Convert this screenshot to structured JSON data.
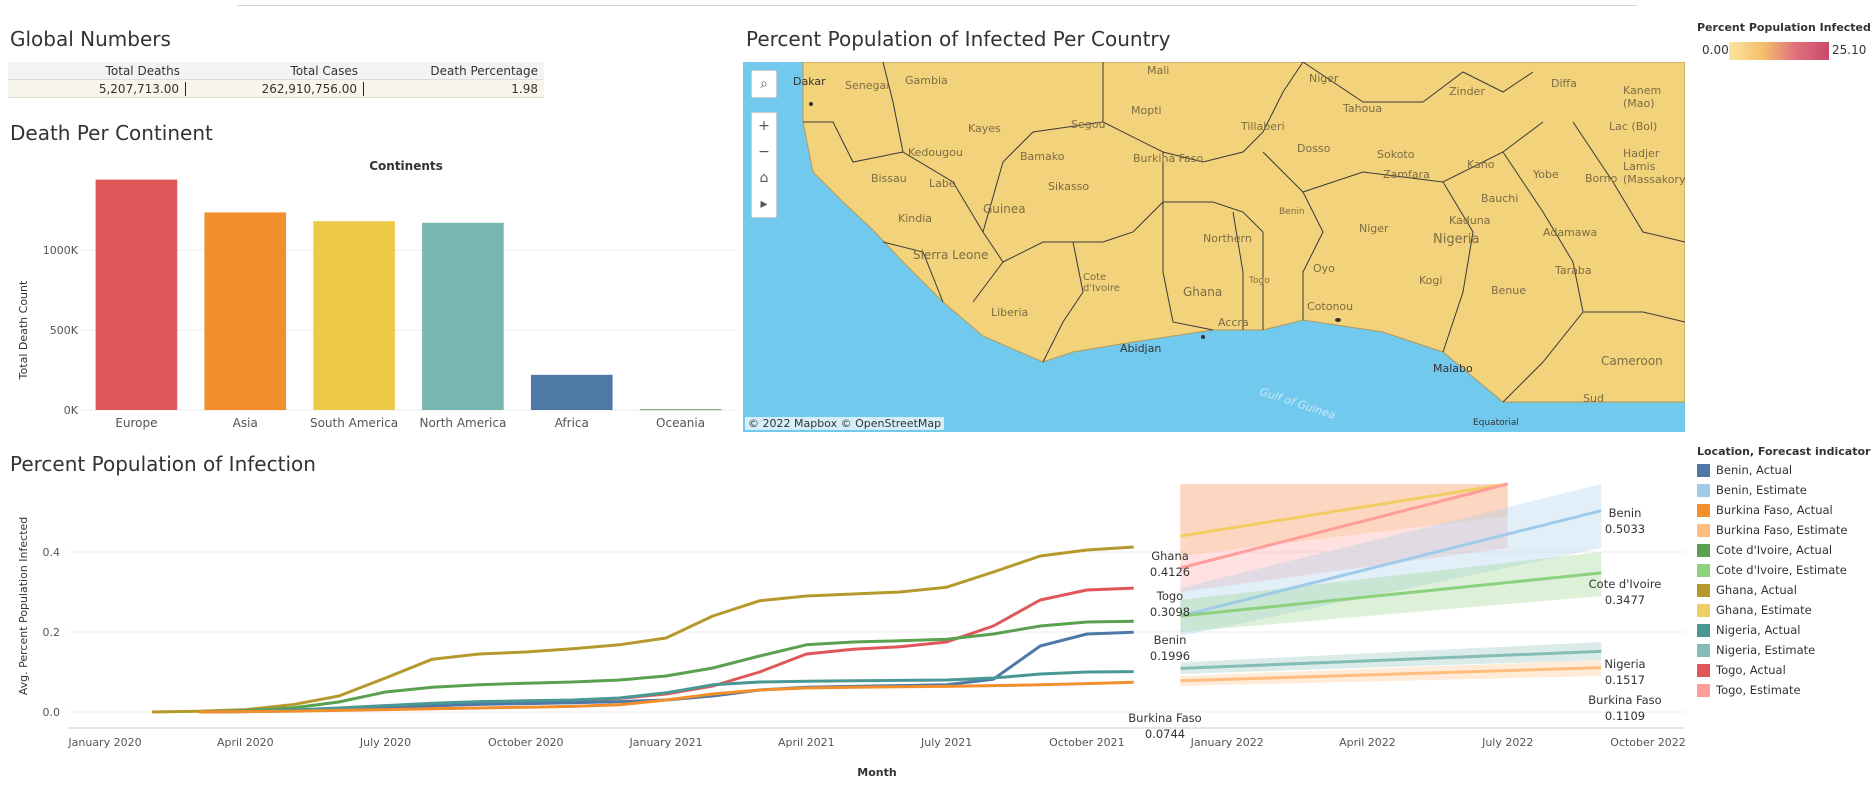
{
  "global": {
    "title": "Global Numbers",
    "headers": [
      "Total Deaths",
      "Total Cases",
      "Death Percentage"
    ],
    "values": [
      "5,207,713.00",
      "262,910,756.00",
      "1.98"
    ]
  },
  "continent": {
    "title": "Death Per Continent",
    "header": "Continents",
    "ylabel": "Total Death Count"
  },
  "map": {
    "title": "Percent Population of Infected Per Country",
    "labels": [
      "Dakar",
      "Senegal",
      "Gambia",
      "Mali",
      "Kayes",
      "Segou",
      "Mopti",
      "Tillaberi",
      "Tahoua",
      "Niger",
      "Zinder",
      "Diffa",
      "Kanem (Mao)",
      "Lac (Bol)",
      "Hadjer Lamis (Massakory)",
      "Kedougou",
      "Bamako",
      "Burkina Faso",
      "Dosso",
      "Sokoto",
      "Kano",
      "Yobe",
      "Borno",
      "Bissau",
      "Labe",
      "Sikasso",
      "Zamfara",
      "Bauchi",
      "Guinea",
      "Kindia",
      "Northern",
      "Benin",
      "Niger",
      "Kaduna",
      "Nigeria",
      "Adamawa",
      "Sierra Leone",
      "Cote d'Ivoire",
      "Ghana",
      "Togo",
      "Oyo",
      "Kogi",
      "Benue",
      "Taraba",
      "Liberia",
      "Accra",
      "Cotonou",
      "Abidjan",
      "Cameroon",
      "Malabo",
      "Sud",
      "Gulf of Guinea",
      "Equatorial"
    ],
    "attribution": "© 2022 Mapbox  © OpenStreetMap",
    "legend_title": "Percent Population Infected",
    "legend_min": "0.00",
    "legend_max": "25.10",
    "land_color": "#f2d27a",
    "water_color": "#72c9ee"
  },
  "infection": {
    "title": "Percent Population of Infection",
    "legend_title": "Location, Forecast indicator",
    "legend": [
      {
        "label": "Benin, Actual",
        "color": "#4e79a7"
      },
      {
        "label": "Benin, Estimate",
        "color": "#a0cbe8"
      },
      {
        "label": "Burkina Faso, Actual",
        "color": "#f28e2b"
      },
      {
        "label": "Burkina Faso, Estimate",
        "color": "#ffbe7d"
      },
      {
        "label": "Cote d'Ivoire, Actual",
        "color": "#59a14f"
      },
      {
        "label": "Cote d'Ivoire, Estimate",
        "color": "#8cd17d"
      },
      {
        "label": "Ghana, Actual",
        "color": "#b6992d"
      },
      {
        "label": "Ghana, Estimate",
        "color": "#f1ce63"
      },
      {
        "label": "Nigeria, Actual",
        "color": "#499894"
      },
      {
        "label": "Nigeria, Estimate",
        "color": "#86bcb6"
      },
      {
        "label": "Togo, Actual",
        "color": "#e15759"
      },
      {
        "label": "Togo, Estimate",
        "color": "#ff9d9a"
      }
    ]
  },
  "chart_data": [
    {
      "type": "bar",
      "title": "Death Per Continent",
      "xlabel": "Continents",
      "ylabel": "Total Death Count",
      "categories": [
        "Europe",
        "Asia",
        "South America",
        "North America",
        "Africa",
        "Oceania"
      ],
      "values": [
        1440000,
        1235000,
        1180000,
        1170000,
        220000,
        5000
      ],
      "colors": [
        "#e15759",
        "#f28e2b",
        "#edc948",
        "#76b7b2",
        "#4e79a7",
        "#59a14f"
      ],
      "yticks": [
        0,
        500000,
        1000000
      ],
      "ytick_labels": [
        "0K",
        "500K",
        "1000K"
      ],
      "ylim": [
        0,
        1500000
      ]
    },
    {
      "type": "line",
      "title": "Percent Population of Infection",
      "xlabel": "Month",
      "ylabel": "Avg. Percent Population Infected",
      "xticks": [
        "2020-01",
        "2020-04",
        "2020-07",
        "2020-10",
        "2021-01",
        "2021-04",
        "2021-07",
        "2021-10",
        "2022-01",
        "2022-04",
        "2022-07",
        "2022-10"
      ],
      "xtick_labels": [
        "January 2020",
        "April 2020",
        "July 2020",
        "October 2020",
        "January 2021",
        "April 2021",
        "July 2021",
        "October 2021",
        "January 2022",
        "April 2022",
        "July 2022",
        "October 2022"
      ],
      "yticks": [
        0,
        0.2,
        0.4
      ],
      "ytick_labels": [
        "0.0",
        "0.2",
        "0.4"
      ],
      "ylim": [
        -0.03,
        0.57
      ],
      "actual": [
        {
          "name": "Ghana, Actual",
          "color": "#b6992d",
          "x": [
            "2020-02",
            "2020-03",
            "2020-04",
            "2020-05",
            "2020-06",
            "2020-07",
            "2020-08",
            "2020-09",
            "2020-10",
            "2020-11",
            "2020-12",
            "2021-01",
            "2021-02",
            "2021-03",
            "2021-04",
            "2021-05",
            "2021-06",
            "2021-07",
            "2021-08",
            "2021-09",
            "2021-10",
            "2021-11"
          ],
          "y": [
            0,
            0.002,
            0.006,
            0.018,
            0.04,
            0.085,
            0.132,
            0.145,
            0.15,
            0.158,
            0.168,
            0.185,
            0.24,
            0.278,
            0.29,
            0.295,
            0.3,
            0.312,
            0.35,
            0.39,
            0.405,
            0.4126
          ]
        },
        {
          "name": "Togo, Actual",
          "color": "#e15759",
          "x": [
            "2020-03",
            "2020-04",
            "2020-05",
            "2020-06",
            "2020-07",
            "2020-08",
            "2020-09",
            "2020-10",
            "2020-11",
            "2020-12",
            "2021-01",
            "2021-02",
            "2021-03",
            "2021-04",
            "2021-05",
            "2021-06",
            "2021-07",
            "2021-08",
            "2021-09",
            "2021-10",
            "2021-11"
          ],
          "y": [
            0,
            0.001,
            0.003,
            0.006,
            0.01,
            0.015,
            0.02,
            0.024,
            0.028,
            0.034,
            0.045,
            0.065,
            0.1,
            0.145,
            0.157,
            0.163,
            0.175,
            0.215,
            0.28,
            0.305,
            0.3098
          ]
        },
        {
          "name": "Cote d'Ivoire, Actual",
          "color": "#59a14f",
          "x": [
            "2020-03",
            "2020-04",
            "2020-05",
            "2020-06",
            "2020-07",
            "2020-08",
            "2020-09",
            "2020-10",
            "2020-11",
            "2020-12",
            "2021-01",
            "2021-02",
            "2021-03",
            "2021-04",
            "2021-05",
            "2021-06",
            "2021-07",
            "2021-08",
            "2021-09",
            "2021-10",
            "2021-11"
          ],
          "y": [
            0,
            0.003,
            0.01,
            0.025,
            0.05,
            0.062,
            0.068,
            0.072,
            0.075,
            0.08,
            0.09,
            0.11,
            0.14,
            0.168,
            0.175,
            0.178,
            0.182,
            0.195,
            0.215,
            0.225,
            0.227
          ]
        },
        {
          "name": "Benin, Actual",
          "color": "#4e79a7",
          "x": [
            "2020-03",
            "2020-04",
            "2020-05",
            "2020-06",
            "2020-07",
            "2020-08",
            "2020-09",
            "2020-10",
            "2020-11",
            "2020-12",
            "2021-01",
            "2021-02",
            "2021-03",
            "2021-04",
            "2021-05",
            "2021-06",
            "2021-07",
            "2021-08",
            "2021-09",
            "2021-10",
            "2021-11"
          ],
          "y": [
            0,
            0.001,
            0.003,
            0.008,
            0.012,
            0.016,
            0.019,
            0.021,
            0.023,
            0.026,
            0.03,
            0.04,
            0.055,
            0.062,
            0.064,
            0.066,
            0.068,
            0.082,
            0.165,
            0.195,
            0.1996
          ]
        },
        {
          "name": "Nigeria, Actual",
          "color": "#499894",
          "x": [
            "2020-03",
            "2020-04",
            "2020-05",
            "2020-06",
            "2020-07",
            "2020-08",
            "2020-09",
            "2020-10",
            "2020-11",
            "2020-12",
            "2021-01",
            "2021-02",
            "2021-03",
            "2021-04",
            "2021-05",
            "2021-06",
            "2021-07",
            "2021-08",
            "2021-09",
            "2021-10",
            "2021-11"
          ],
          "y": [
            0,
            0.002,
            0.005,
            0.01,
            0.016,
            0.022,
            0.026,
            0.028,
            0.03,
            0.035,
            0.048,
            0.068,
            0.075,
            0.077,
            0.078,
            0.079,
            0.08,
            0.085,
            0.095,
            0.1,
            0.101
          ]
        },
        {
          "name": "Burkina Faso, Actual",
          "color": "#f28e2b",
          "x": [
            "2020-03",
            "2020-04",
            "2020-05",
            "2020-06",
            "2020-07",
            "2020-08",
            "2020-09",
            "2020-10",
            "2020-11",
            "2020-12",
            "2021-01",
            "2021-02",
            "2021-03",
            "2021-04",
            "2021-05",
            "2021-06",
            "2021-07",
            "2021-08",
            "2021-09",
            "2021-10",
            "2021-11"
          ],
          "y": [
            0,
            0.001,
            0.002,
            0.004,
            0.006,
            0.008,
            0.01,
            0.012,
            0.014,
            0.018,
            0.03,
            0.045,
            0.055,
            0.06,
            0.062,
            0.063,
            0.064,
            0.066,
            0.068,
            0.071,
            0.0744
          ]
        }
      ],
      "estimate": [
        {
          "name": "Ghana, Estimate",
          "color": "#f1ce63",
          "x": [
            "2021-12",
            "2022-07"
          ],
          "y": [
            0.44,
            0.58
          ],
          "band": [
            [
              0.39,
              0.62
            ],
            [
              0.49,
              0.62
            ]
          ]
        },
        {
          "name": "Togo, Estimate",
          "color": "#ff9d9a",
          "x": [
            "2021-12",
            "2022-07"
          ],
          "y": [
            0.36,
            0.58
          ],
          "band": [
            [
              0.3,
              0.62
            ],
            [
              0.41,
              0.62
            ]
          ]
        },
        {
          "name": "Benin, Estimate",
          "color": "#a0cbe8",
          "x": [
            "2021-12",
            "2022-09"
          ],
          "y": [
            0.24,
            0.5033
          ],
          "band": [
            [
              0.19,
              0.31
            ],
            [
              0.41,
              0.6
            ]
          ]
        },
        {
          "name": "Cote d'Ivoire, Estimate",
          "color": "#8cd17d",
          "x": [
            "2021-12",
            "2022-09"
          ],
          "y": [
            0.24,
            0.3477
          ],
          "band": [
            [
              0.2,
              0.28
            ],
            [
              0.29,
              0.4
            ]
          ]
        },
        {
          "name": "Nigeria, Estimate",
          "color": "#86bcb6",
          "x": [
            "2021-12",
            "2022-09"
          ],
          "y": [
            0.109,
            0.1517
          ],
          "band": [
            [
              0.095,
              0.124
            ],
            [
              0.13,
              0.175
            ]
          ]
        },
        {
          "name": "Burkina Faso, Estimate",
          "color": "#ffbe7d",
          "x": [
            "2021-12",
            "2022-09"
          ],
          "y": [
            0.078,
            0.1109
          ],
          "band": [
            [
              0.065,
              0.09
            ],
            [
              0.09,
              0.13
            ]
          ]
        }
      ],
      "labels": [
        {
          "name": "Ghana",
          "value": "0.4126"
        },
        {
          "name": "Togo",
          "value": "0.3098"
        },
        {
          "name": "Benin",
          "value": "0.1996"
        },
        {
          "name": "Burkina Faso",
          "value": "0.0744"
        },
        {
          "name": "Benin",
          "value": "0.5033"
        },
        {
          "name": "Cote d'Ivoire",
          "value": "0.3477"
        },
        {
          "name": "Nigeria",
          "value": "0.1517"
        },
        {
          "name": "Burkina Faso",
          "value": "0.1109"
        }
      ]
    }
  ]
}
